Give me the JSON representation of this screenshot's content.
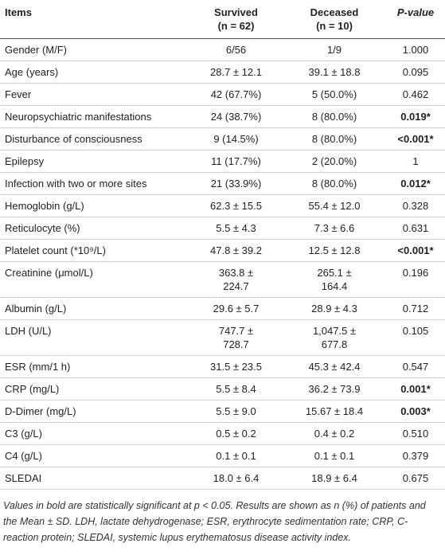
{
  "table": {
    "header": {
      "items": "Items",
      "survived": "Survived",
      "survived_n": "(n = 62)",
      "deceased": "Deceased",
      "deceased_n": "(n = 10)",
      "p_value": "P-value"
    },
    "rows": [
      {
        "item": "Gender (M/F)",
        "survived": "6/56",
        "deceased": "1/9",
        "p_value": "1.000",
        "significant": false
      },
      {
        "item": "Age (years)",
        "survived": "28.7 ± 12.1",
        "deceased": "39.1 ± 18.8",
        "p_value": "0.095",
        "significant": false
      },
      {
        "item": "Fever",
        "survived": "42 (67.7%)",
        "deceased": "5 (50.0%)",
        "p_value": "0.462",
        "significant": false
      },
      {
        "item": "Neuropsychiatric manifestations",
        "survived": "24 (38.7%)",
        "deceased": "8 (80.0%)",
        "p_value": "0.019*",
        "significant": true
      },
      {
        "item": "Disturbance of consciousness",
        "survived": "9 (14.5%)",
        "deceased": "8 (80.0%)",
        "p_value": "<0.001*",
        "significant": true
      },
      {
        "item": "Epilepsy",
        "survived": "11 (17.7%)",
        "deceased": "2 (20.0%)",
        "p_value": "1",
        "significant": false
      },
      {
        "item": "Infection with two or more sites",
        "survived": "21 (33.9%)",
        "deceased": "8 (80.0%)",
        "p_value": "0.012*",
        "significant": true
      },
      {
        "item": "Hemoglobin (g/L)",
        "survived": "62.3 ± 15.5",
        "deceased": "55.4 ± 12.0",
        "p_value": "0.328",
        "significant": false
      },
      {
        "item": "Reticulocyte (%)",
        "survived": "5.5 ± 4.3",
        "deceased": "7.3 ± 6.6",
        "p_value": "0.631",
        "significant": false
      },
      {
        "item": "Platelet count (*10⁹/L)",
        "survived": "47.8 ± 39.2",
        "deceased": "12.5 ± 12.8",
        "p_value": "<0.001*",
        "significant": true
      },
      {
        "item": "Creatinine (μmol/L)",
        "survived": "363.8 ± 224.7",
        "deceased": "265.1 ± 164.4",
        "p_value": "0.196",
        "significant": false
      },
      {
        "item": "Albumin (g/L)",
        "survived": "29.6 ± 5.7",
        "deceased": "28.9 ± 4.3",
        "p_value": "0.712",
        "significant": false
      },
      {
        "item": "LDH (U/L)",
        "survived": "747.7 ± 728.7",
        "deceased": "1,047.5 ± 677.8",
        "p_value": "0.105",
        "significant": false
      },
      {
        "item": "ESR (mm/1 h)",
        "survived": "31.5 ± 23.5",
        "deceased": "45.3 ± 42.4",
        "p_value": "0.547",
        "significant": false
      },
      {
        "item": "CRP (mg/L)",
        "survived": "5.5 ± 8.4",
        "deceased": "36.2 ± 73.9",
        "p_value": "0.001*",
        "significant": true
      },
      {
        "item": "D-Dimer (mg/L)",
        "survived": "5.5 ± 9.0",
        "deceased": "15.67 ± 18.4",
        "p_value": "0.003*",
        "significant": true
      },
      {
        "item": "C3 (g/L)",
        "survived": "0.5 ± 0.2",
        "deceased": "0.4 ± 0.2",
        "p_value": "0.510",
        "significant": false
      },
      {
        "item": "C4 (g/L)",
        "survived": "0.1 ± 0.1",
        "deceased": "0.1 ± 0.1",
        "p_value": "0.379",
        "significant": false
      },
      {
        "item": "SLEDAI",
        "survived": "18.0 ± 6.4",
        "deceased": "18.9 ± 6.4",
        "p_value": "0.675",
        "significant": false
      }
    ],
    "footnote": "Values in bold are statistically significant at p < 0.05. Results are shown as n (%) of patients and the Mean ± SD. LDH, lactate dehydrogenase; ESR, erythrocyte sedimentation rate; CRP, C-reaction protein; SLEDAI, systemic lupus erythematosus disease activity index."
  }
}
